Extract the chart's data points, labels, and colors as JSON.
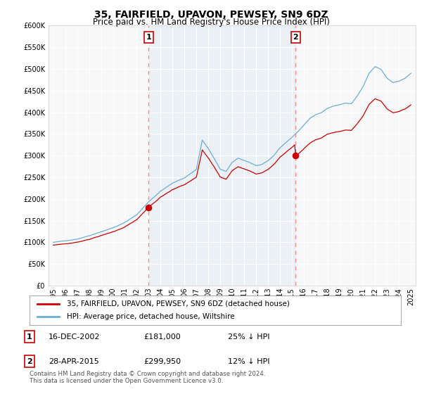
{
  "title": "35, FAIRFIELD, UPAVON, PEWSEY, SN9 6DZ",
  "subtitle": "Price paid vs. HM Land Registry's House Price Index (HPI)",
  "legend_line1": "35, FAIRFIELD, UPAVON, PEWSEY, SN9 6DZ (detached house)",
  "legend_line2": "HPI: Average price, detached house, Wiltshire",
  "footer": "Contains HM Land Registry data © Crown copyright and database right 2024.\nThis data is licensed under the Open Government Licence v3.0.",
  "annotation1_label": "1",
  "annotation1_date": "16-DEC-2002",
  "annotation1_price": "£181,000",
  "annotation1_hpi": "25% ↓ HPI",
  "annotation1_year": 2003.0,
  "annotation1_value": 181000,
  "annotation2_label": "2",
  "annotation2_date": "28-APR-2015",
  "annotation2_price": "£299,950",
  "annotation2_hpi": "12% ↓ HPI",
  "annotation2_year": 2015.33,
  "annotation2_value": 299950,
  "ylim": [
    0,
    600000
  ],
  "yticks": [
    0,
    50000,
    100000,
    150000,
    200000,
    250000,
    300000,
    350000,
    400000,
    450000,
    500000,
    550000,
    600000
  ],
  "hpi_color": "#6BAED6",
  "hpi_fill_color": "#C8DCF0",
  "price_color": "#CC0000",
  "dashed_color": "#FF8888",
  "background_color": "#FFFFFF",
  "plot_bg_color": "#F8F8F8"
}
